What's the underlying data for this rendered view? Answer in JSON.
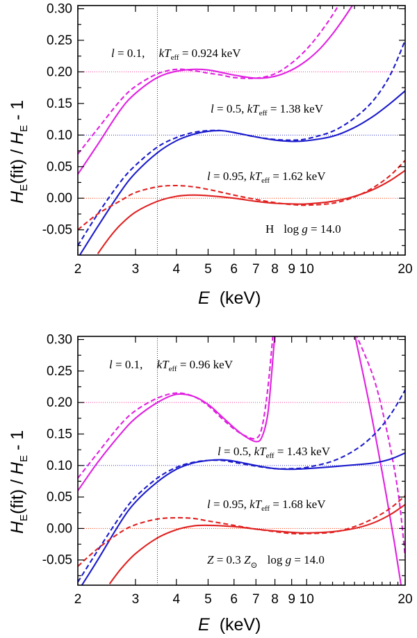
{
  "chart_data": [
    {
      "type": "line",
      "panel": "top",
      "xlabel": {
        "var": "E",
        "unit": "(keV)"
      },
      "ylabel": {
        "h1": "H",
        "s1": "E",
        "mid": "(fit) / ",
        "h2": "H",
        "s2": "E",
        "tail": " - 1"
      },
      "xscale": "log",
      "xlim": [
        2,
        20
      ],
      "ylim": [
        -0.09,
        0.305
      ],
      "xticks_major": [
        2,
        3,
        4,
        5,
        6,
        7,
        8,
        9,
        10,
        20
      ],
      "xtick_labels": [
        "2",
        "3",
        "4",
        "5",
        "6",
        "7",
        "8",
        "9",
        "10",
        "20"
      ],
      "yticks": [
        -0.05,
        0.0,
        0.05,
        0.1,
        0.15,
        0.2,
        0.25,
        0.3
      ],
      "ytick_labels": [
        "-0.05",
        "0.00",
        "0.05",
        "0.10",
        "0.15",
        "0.20",
        "0.25",
        "0.30"
      ],
      "vline_x": 3.5,
      "corner_label": {
        "left": "H",
        "g": "log ",
        "gv": "g",
        "eq": " = 14.0"
      },
      "reference_lines": [
        {
          "y": 0.2,
          "color": "#ff3399"
        },
        {
          "y": 0.1,
          "color": "#3333cc"
        },
        {
          "y": 0.0,
          "color": "#ff3300"
        }
      ],
      "annotations": [
        {
          "l": "l",
          "lv": " = 0.1,",
          "kt": "kT",
          "sub": "eff",
          "val": " = 0.924 keV"
        },
        {
          "l": "l",
          "lv": " = 0.5,",
          "kt": "kT",
          "sub": "eff",
          "val": " = 1.38 keV"
        },
        {
          "l": "l",
          "lv": " = 0.95,",
          "kt": "kT",
          "sub": "eff",
          "val": " = 1.62 keV"
        }
      ],
      "series": [
        {
          "name": "l=0.1 fit",
          "color": "#e020e0",
          "dash": false,
          "x": [
            2,
            2.3,
            2.7,
            3.0,
            3.5,
            4.0,
            4.5,
            5,
            5.5,
            6,
            7,
            8,
            9,
            10,
            11,
            12,
            13,
            14
          ],
          "y": [
            0.038,
            0.085,
            0.14,
            0.166,
            0.191,
            0.201,
            0.204,
            0.203,
            0.199,
            0.195,
            0.19,
            0.193,
            0.203,
            0.218,
            0.237,
            0.26,
            0.285,
            0.31
          ]
        },
        {
          "name": "l=0.1 model",
          "color": "#e020e0",
          "dash": true,
          "x": [
            2,
            2.3,
            2.7,
            3.0,
            3.5,
            4.0,
            4.5,
            5,
            5.5,
            6,
            7,
            8,
            9,
            10,
            11,
            12,
            13
          ],
          "y": [
            0.07,
            0.11,
            0.155,
            0.177,
            0.197,
            0.204,
            0.202,
            0.198,
            0.195,
            0.191,
            0.19,
            0.197,
            0.214,
            0.236,
            0.262,
            0.29,
            0.32
          ]
        },
        {
          "name": "l=0.5 fit",
          "color": "#1a1acc",
          "dash": false,
          "x": [
            2,
            2.3,
            2.7,
            3.0,
            3.5,
            4.0,
            4.5,
            5,
            5.5,
            6,
            7,
            8,
            9,
            10,
            12,
            14,
            16,
            18,
            20
          ],
          "y": [
            -0.095,
            -0.045,
            0.01,
            0.04,
            0.072,
            0.091,
            0.101,
            0.106,
            0.107,
            0.104,
            0.097,
            0.092,
            0.09,
            0.091,
            0.098,
            0.112,
            0.13,
            0.15,
            0.17
          ]
        },
        {
          "name": "l=0.5 model",
          "color": "#1a1acc",
          "dash": true,
          "x": [
            2,
            2.3,
            2.7,
            3.0,
            3.5,
            4.0,
            4.5,
            5,
            5.5,
            6,
            7,
            8,
            9,
            10,
            12,
            14,
            16,
            18,
            20
          ],
          "y": [
            -0.075,
            -0.025,
            0.026,
            0.052,
            0.081,
            0.096,
            0.104,
            0.107,
            0.107,
            0.104,
            0.097,
            0.093,
            0.092,
            0.094,
            0.106,
            0.127,
            0.155,
            0.195,
            0.25
          ]
        },
        {
          "name": "l=0.95 fit",
          "color": "#e02020",
          "dash": false,
          "x": [
            2.3,
            2.5,
            2.7,
            3.0,
            3.5,
            4.0,
            4.5,
            5,
            6,
            7,
            8,
            9,
            10,
            12,
            14,
            16,
            18,
            20
          ],
          "y": [
            -0.088,
            -0.062,
            -0.042,
            -0.022,
            -0.005,
            0.003,
            0.005,
            0.004,
            0.0,
            -0.005,
            -0.008,
            -0.009,
            -0.009,
            -0.005,
            0.003,
            0.014,
            0.028,
            0.044
          ]
        },
        {
          "name": "l=0.95 model",
          "color": "#e02020",
          "dash": true,
          "x": [
            2,
            2.3,
            2.7,
            3.0,
            3.5,
            4.0,
            4.5,
            5,
            6,
            7,
            8,
            9,
            10,
            12,
            14,
            16,
            18,
            20
          ],
          "y": [
            -0.05,
            -0.025,
            -0.004,
            0.009,
            0.018,
            0.02,
            0.018,
            0.014,
            0.005,
            -0.002,
            -0.007,
            -0.01,
            -0.011,
            -0.008,
            0.002,
            0.017,
            0.036,
            0.06
          ]
        }
      ]
    },
    {
      "type": "line",
      "panel": "bottom",
      "xlabel": {
        "var": "E",
        "unit": "(keV)"
      },
      "ylabel": {
        "h1": "H",
        "s1": "E",
        "mid": "(fit) / ",
        "h2": "H",
        "s2": "E",
        "tail": " - 1"
      },
      "xscale": "log",
      "xlim": [
        2,
        20
      ],
      "ylim": [
        -0.09,
        0.305
      ],
      "xticks_major": [
        2,
        3,
        4,
        5,
        6,
        7,
        8,
        9,
        10,
        20
      ],
      "xtick_labels": [
        "2",
        "3",
        "4",
        "5",
        "6",
        "7",
        "8",
        "9",
        "10",
        "20"
      ],
      "yticks": [
        -0.05,
        0.0,
        0.05,
        0.1,
        0.15,
        0.2,
        0.25,
        0.3
      ],
      "ytick_labels": [
        "-0.05",
        "0.00",
        "0.05",
        "0.10",
        "0.15",
        "0.20",
        "0.25",
        "0.30"
      ],
      "vline_x": 3.5,
      "corner_label": {
        "left": "Z",
        "mid": " = 0.3 ",
        "z2": "Z",
        "sun": "⊙",
        "g": "log ",
        "gv": "g",
        "eq": " = 14.0"
      },
      "reference_lines": [
        {
          "y": 0.2,
          "color": "#ff3399"
        },
        {
          "y": 0.1,
          "color": "#3333cc"
        },
        {
          "y": 0.0,
          "color": "#ff3300"
        }
      ],
      "annotations": [
        {
          "l": "l",
          "lv": " = 0.1,",
          "kt": "kT",
          "sub": "eff",
          "val": " = 0.96 keV"
        },
        {
          "l": "l",
          "lv": " = 0.5,",
          "kt": "kT",
          "sub": "eff",
          "val": " = 1.43 keV"
        },
        {
          "l": "l",
          "lv": " = 0.95,",
          "kt": "kT",
          "sub": "eff",
          "val": " = 1.68 keV"
        }
      ],
      "series": [
        {
          "name": "l=0.1 fit (low E)",
          "color": "#e020e0",
          "dash": false,
          "x": [
            2,
            2.3,
            2.7,
            3.0,
            3.5,
            4.0,
            4.5,
            5,
            5.5,
            6,
            6.5,
            7,
            7.3,
            7.6,
            7.8,
            8.0
          ],
          "y": [
            0.06,
            0.105,
            0.15,
            0.175,
            0.2,
            0.213,
            0.21,
            0.197,
            0.178,
            0.16,
            0.146,
            0.138,
            0.145,
            0.18,
            0.24,
            0.31
          ]
        },
        {
          "name": "l=0.1 model (low E)",
          "color": "#e020e0",
          "dash": true,
          "x": [
            2,
            2.3,
            2.7,
            3.0,
            3.5,
            4.0,
            4.5,
            5,
            5.5,
            6,
            6.5,
            7,
            7.3,
            7.6,
            7.9
          ],
          "y": [
            0.08,
            0.12,
            0.165,
            0.187,
            0.207,
            0.215,
            0.21,
            0.195,
            0.175,
            0.158,
            0.147,
            0.143,
            0.16,
            0.22,
            0.31
          ]
        },
        {
          "name": "l=0.1 fit (high E)",
          "color": "#e020e0",
          "dash": false,
          "x": [
            14.0,
            15.5,
            17,
            18.5,
            19.5
          ],
          "y": [
            0.31,
            0.2,
            0.09,
            -0.02,
            -0.095
          ]
        },
        {
          "name": "l=0.1 model (high E)",
          "color": "#e020e0",
          "dash": true,
          "x": [
            14.1,
            16,
            17.5,
            19,
            20
          ],
          "y": [
            0.31,
            0.24,
            0.16,
            0.06,
            -0.045
          ]
        },
        {
          "name": "l=0.5 fit",
          "color": "#1a1acc",
          "dash": false,
          "x": [
            2,
            2.3,
            2.7,
            3.0,
            3.5,
            4.0,
            4.5,
            5,
            5.5,
            6,
            7,
            8,
            9,
            10,
            12,
            14,
            16,
            18,
            20
          ],
          "y": [
            -0.1,
            -0.05,
            0.01,
            0.042,
            0.074,
            0.094,
            0.104,
            0.108,
            0.109,
            0.107,
            0.1,
            0.095,
            0.094,
            0.095,
            0.098,
            0.101,
            0.104,
            0.11,
            0.12
          ]
        },
        {
          "name": "l=0.5 model",
          "color": "#1a1acc",
          "dash": true,
          "x": [
            2,
            2.3,
            2.7,
            3.0,
            3.5,
            4.0,
            4.5,
            5,
            5.5,
            6,
            7,
            8,
            9,
            10,
            12,
            14,
            16,
            18,
            20
          ],
          "y": [
            -0.085,
            -0.035,
            0.02,
            0.05,
            0.08,
            0.097,
            0.105,
            0.108,
            0.108,
            0.105,
            0.099,
            0.095,
            0.095,
            0.097,
            0.107,
            0.124,
            0.148,
            0.18,
            0.22
          ]
        },
        {
          "name": "l=0.95 fit",
          "color": "#e02020",
          "dash": false,
          "x": [
            2.5,
            2.7,
            3.0,
            3.5,
            4.0,
            4.5,
            5,
            6,
            7,
            8,
            9,
            10,
            12,
            14,
            16,
            18,
            20
          ],
          "y": [
            -0.088,
            -0.065,
            -0.04,
            -0.015,
            -0.002,
            0.004,
            0.005,
            0.003,
            -0.001,
            -0.004,
            -0.006,
            -0.007,
            -0.005,
            0.0,
            0.009,
            0.022,
            0.038
          ]
        },
        {
          "name": "l=0.95 model",
          "color": "#e02020",
          "dash": true,
          "x": [
            2,
            2.3,
            2.7,
            3.0,
            3.5,
            4.0,
            4.5,
            5,
            6,
            7,
            8,
            9,
            10,
            12,
            14,
            16,
            18,
            20
          ],
          "y": [
            -0.06,
            -0.032,
            -0.006,
            0.006,
            0.015,
            0.017,
            0.016,
            0.012,
            0.005,
            -0.001,
            -0.005,
            -0.008,
            -0.008,
            -0.006,
            0.003,
            0.016,
            0.032,
            0.052
          ]
        }
      ]
    }
  ]
}
